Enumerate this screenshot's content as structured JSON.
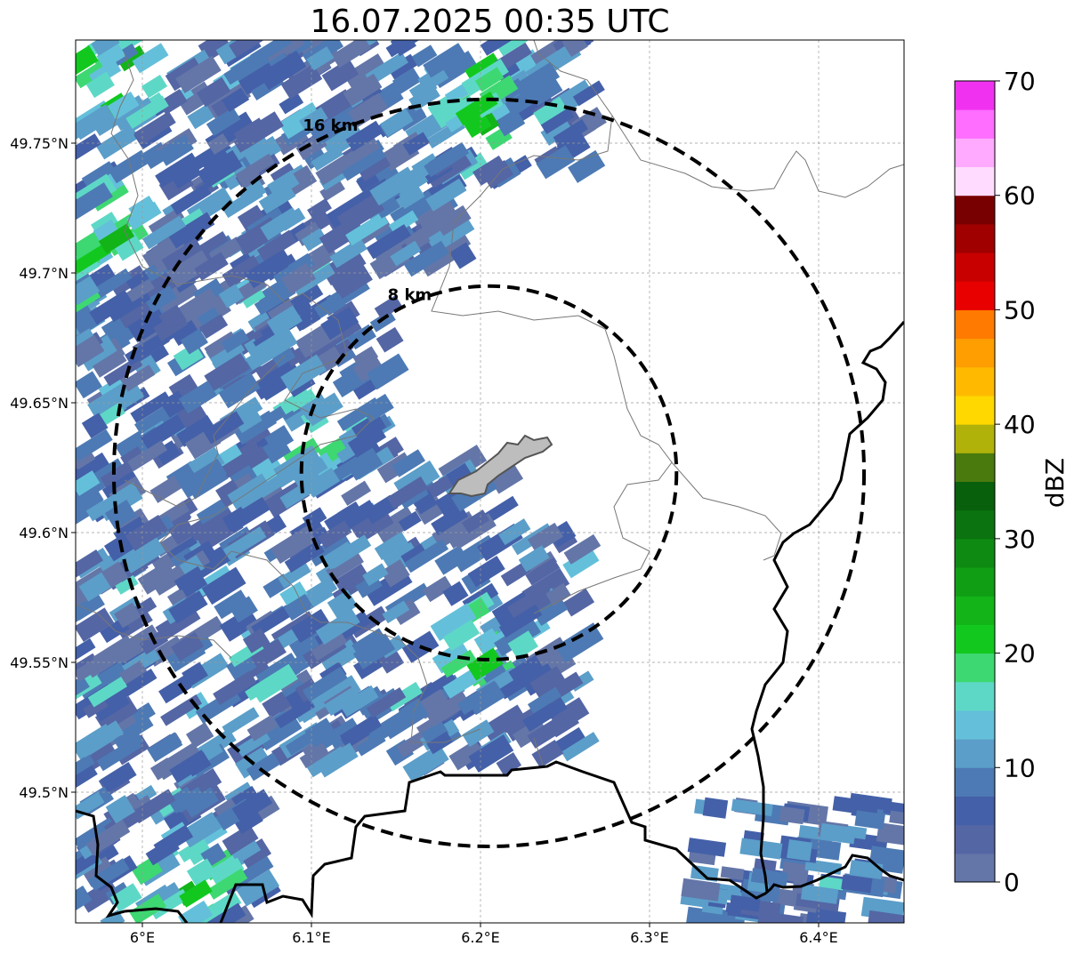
{
  "title": "16.07.2025 00:35 UTC",
  "map": {
    "lon_range": [
      5.96,
      6.45
    ],
    "lat_range": [
      49.45,
      49.79
    ],
    "center": {
      "lon": 6.205,
      "lat": 49.623
    },
    "x_ticks": [
      {
        "value": 6.0,
        "label": "6°E"
      },
      {
        "value": 6.1,
        "label": "6.1°E"
      },
      {
        "value": 6.2,
        "label": "6.2°E"
      },
      {
        "value": 6.3,
        "label": "6.3°E"
      },
      {
        "value": 6.4,
        "label": "6.4°E"
      }
    ],
    "y_ticks": [
      {
        "value": 49.75,
        "label": "49.75°N"
      },
      {
        "value": 49.7,
        "label": "49.7°N"
      },
      {
        "value": 49.65,
        "label": "49.65°N"
      },
      {
        "value": 49.6,
        "label": "49.6°N"
      },
      {
        "value": 49.55,
        "label": "49.55°N"
      },
      {
        "value": 49.5,
        "label": "49.5°N"
      }
    ],
    "grid": true,
    "range_rings": [
      {
        "radius_km": 8,
        "label": "8 km"
      },
      {
        "radius_km": 16,
        "label": "16 km"
      }
    ]
  },
  "colorbar": {
    "label": "dBZ",
    "min": 0,
    "max": 70,
    "tick_values": [
      0,
      10,
      20,
      30,
      40,
      50,
      60,
      70
    ],
    "tick_labels": [
      "0",
      "10",
      "20",
      "30",
      "40",
      "50",
      "60",
      "70"
    ],
    "colors": [
      "#6476a8",
      "#5466a4",
      "#4460a8",
      "#4d7ab4",
      "#5b9ec9",
      "#64c0da",
      "#5ed8c6",
      "#3dd872",
      "#12c81f",
      "#12b418",
      "#109e14",
      "#0e8a12",
      "#0b7410",
      "#08600c",
      "#4a7a0e",
      "#b0b20a",
      "#ffd800",
      "#ffba00",
      "#ff9e00",
      "#ff7a00",
      "#e80000",
      "#c80000",
      "#a00000",
      "#780000",
      "#ffdcff",
      "#ffaaff",
      "#ff6eff",
      "#f032f0"
    ]
  }
}
